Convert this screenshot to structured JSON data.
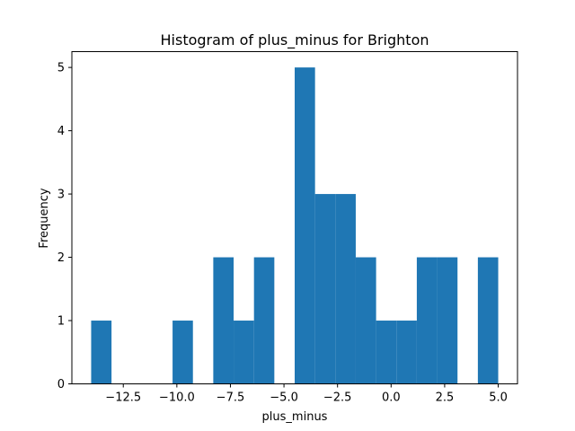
{
  "chart_data": {
    "type": "bar",
    "title": "Histogram of plus_minus for Brighton",
    "xlabel": "plus_minus",
    "ylabel": "Frequency",
    "xlim": [
      -14.9,
      5.9
    ],
    "ylim": [
      0,
      5.25
    ],
    "bin_edges": [
      -14.0,
      -13.05,
      -12.1,
      -11.15,
      -10.2,
      -9.25,
      -8.3,
      -7.35,
      -6.4,
      -5.45,
      -4.5,
      -3.55,
      -2.6,
      -1.65,
      -0.7,
      0.25,
      1.2,
      2.15,
      3.1,
      4.05,
      5.0
    ],
    "counts": [
      1,
      0,
      0,
      0,
      1,
      0,
      2,
      1,
      2,
      0,
      5,
      3,
      3,
      2,
      1,
      1,
      2,
      2,
      0,
      2
    ],
    "xticks": [
      -12.5,
      -10.0,
      -7.5,
      -5.0,
      -2.5,
      0.0,
      2.5,
      5.0
    ],
    "xtick_labels": [
      "−12.5",
      "−10.0",
      "−7.5",
      "−5.0",
      "−2.5",
      "0.0",
      "2.5",
      "5.0"
    ],
    "yticks": [
      0,
      1,
      2,
      3,
      4,
      5
    ],
    "ytick_labels": [
      "0",
      "1",
      "2",
      "3",
      "4",
      "5"
    ],
    "bar_color": "#1f77b4",
    "grid": false
  }
}
